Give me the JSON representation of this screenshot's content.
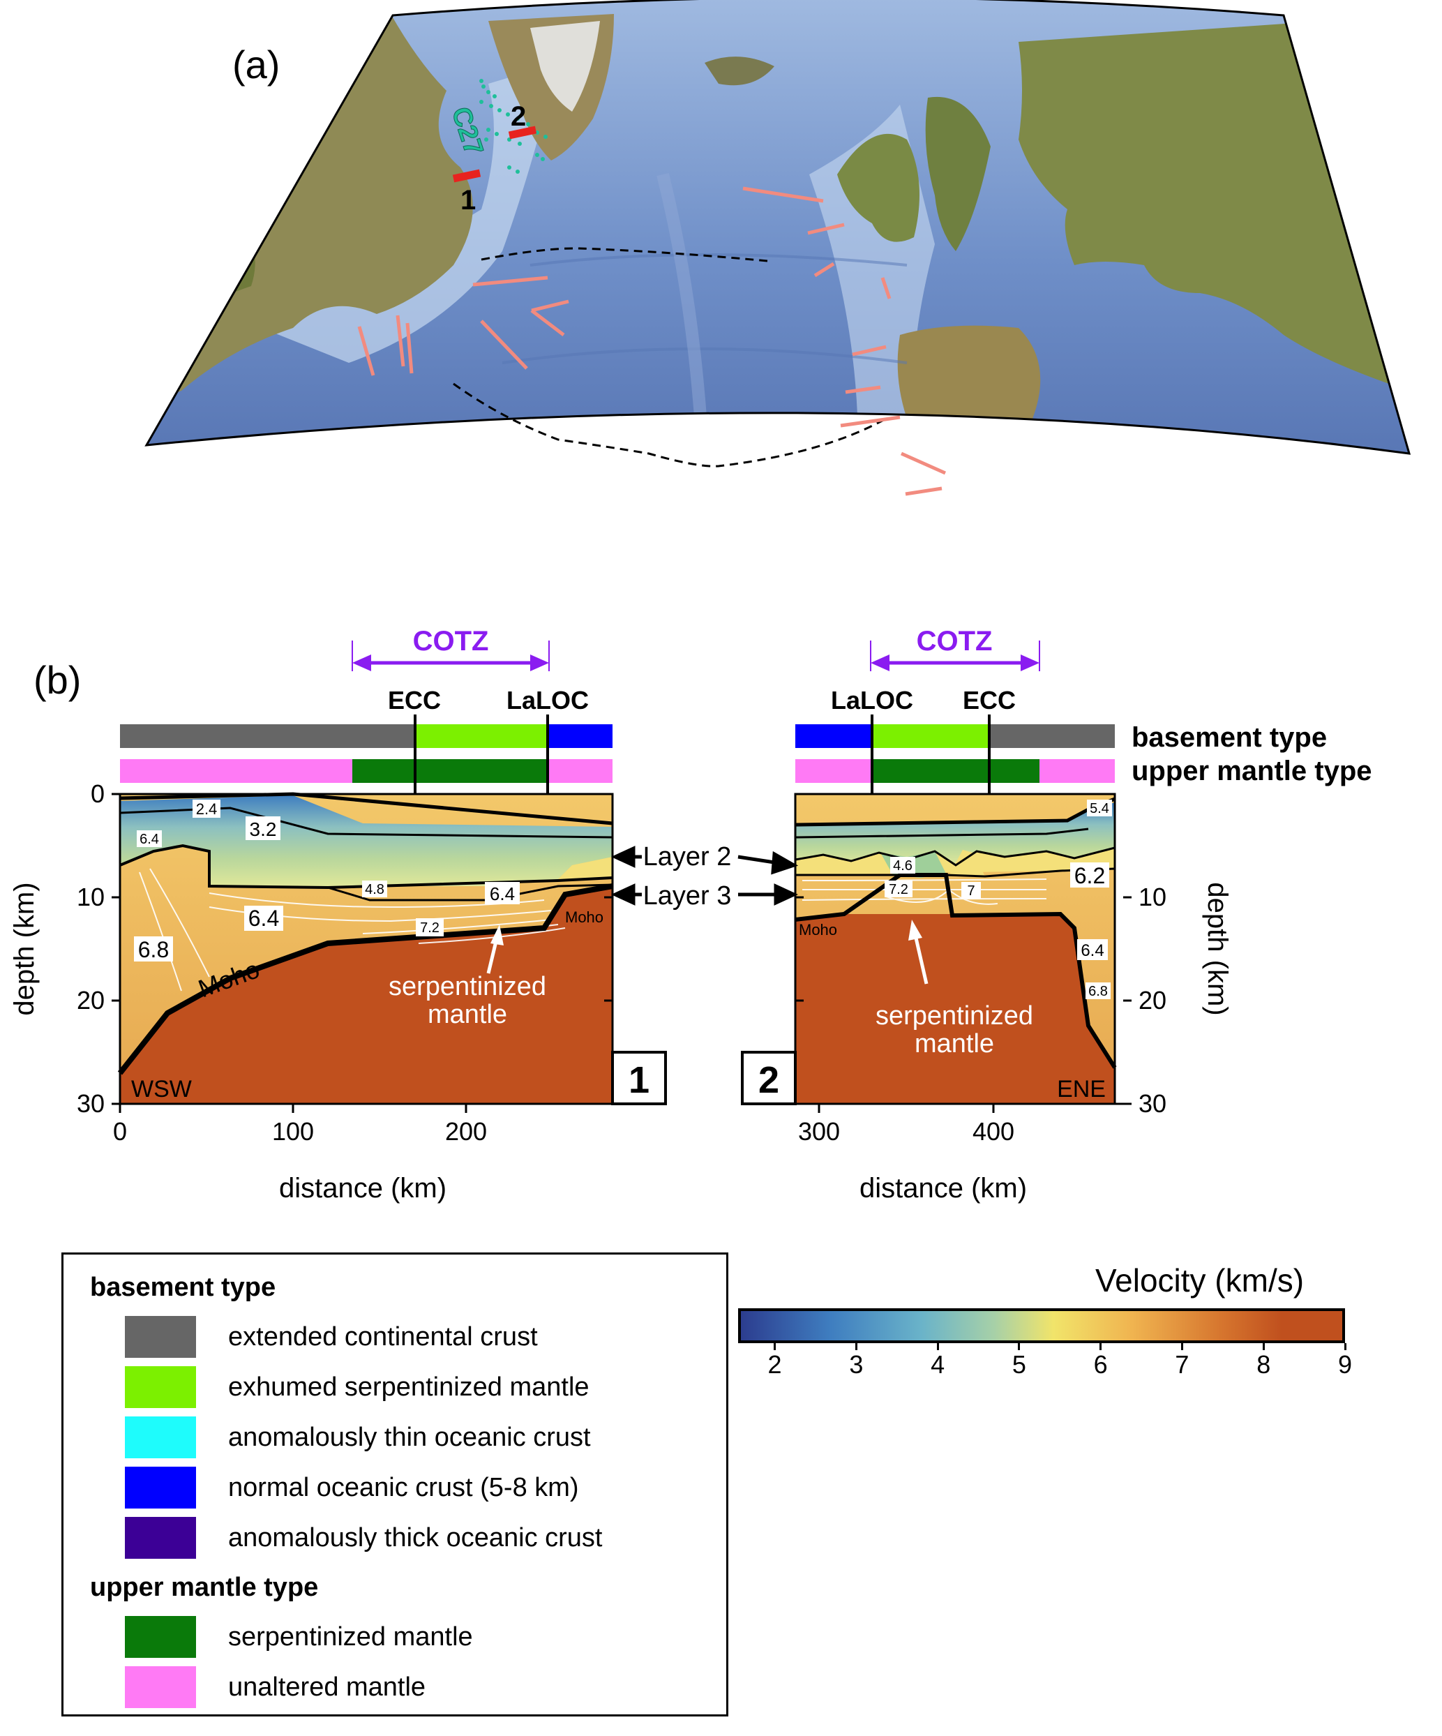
{
  "panel_a": {
    "label": "(a)",
    "annotations": {
      "c27": "C27",
      "profile_1": "1",
      "profile_2": "2"
    },
    "colors": {
      "profile_line": "#e8231f",
      "other_profiles": "#f28b7f",
      "anomaly": "#1fbf9a",
      "ocean": "#3a5a9e",
      "land": "#8a7a4a"
    }
  },
  "panel_b": {
    "label": "(b)",
    "cotz_label": "COTZ",
    "ecc_label": "ECC",
    "laloc_label": "LaLOC",
    "basement_row_label": "basement type",
    "mantle_row_label": "upper mantle type",
    "profile1": {
      "badge": "1",
      "direction": "WSW",
      "velocity_labels": [
        "2.4",
        "3.2",
        "6.4",
        "4.8",
        "6.4",
        "6.4",
        "7.2",
        "6.8"
      ],
      "moho_label": "Moho",
      "moho_small": "Moho",
      "serp_label_1": "serpentinized",
      "serp_label_2": "mantle"
    },
    "profile2": {
      "badge": "2",
      "direction": "ENE",
      "velocity_labels": [
        "5.4",
        "4.6",
        "6.2",
        "7.2",
        "7",
        "6.4",
        "6.8"
      ],
      "moho_small": "Moho",
      "serp_label_1": "serpentinized",
      "serp_label_2": "mantle"
    },
    "layer2_label": "Layer 2",
    "layer3_label": "Layer 3",
    "left_axis": {
      "label": "depth (km)",
      "ticks": [
        "0",
        "10",
        "20",
        "30"
      ]
    },
    "right_axis": {
      "label": "depth (km)",
      "ticks": [
        "10",
        "20",
        "30"
      ]
    },
    "x_axis_1": {
      "label": "distance (km)",
      "ticks": [
        "0",
        "100",
        "200"
      ]
    },
    "x_axis_2": {
      "label": "distance (km)",
      "ticks": [
        "300",
        "400"
      ]
    },
    "colors": {
      "cotz": "#8a1cf0",
      "extended_continental": "#666666",
      "exhumed_serp": "#7cf000",
      "normal_oceanic": "#0000ff",
      "serp_mantle": "#0a7a0a",
      "unaltered_mantle": "#ff7af5",
      "mantle_fill": "#c0501e"
    }
  },
  "legend": {
    "basement_title": "basement type",
    "basement_items": [
      {
        "label": "extended continental crust",
        "color": "#666666"
      },
      {
        "label": "exhumed serpentinized mantle",
        "color": "#7cf000"
      },
      {
        "label": "anomalously thin oceanic crust",
        "color": "#1efcfc"
      },
      {
        "label": "normal oceanic crust (5-8 km)",
        "color": "#0000ff"
      },
      {
        "label": "anomalously thick oceanic crust",
        "color": "#3c0096"
      }
    ],
    "mantle_title": "upper mantle type",
    "mantle_items": [
      {
        "label": "serpentinized mantle",
        "color": "#0a7a0a"
      },
      {
        "label": "unaltered mantle",
        "color": "#ff7af5"
      }
    ]
  },
  "colorbar": {
    "title": "Velocity (km/s)",
    "ticks": [
      "2",
      "3",
      "4",
      "5",
      "6",
      "7",
      "8",
      "9"
    ],
    "range": [
      1.55,
      9
    ]
  }
}
